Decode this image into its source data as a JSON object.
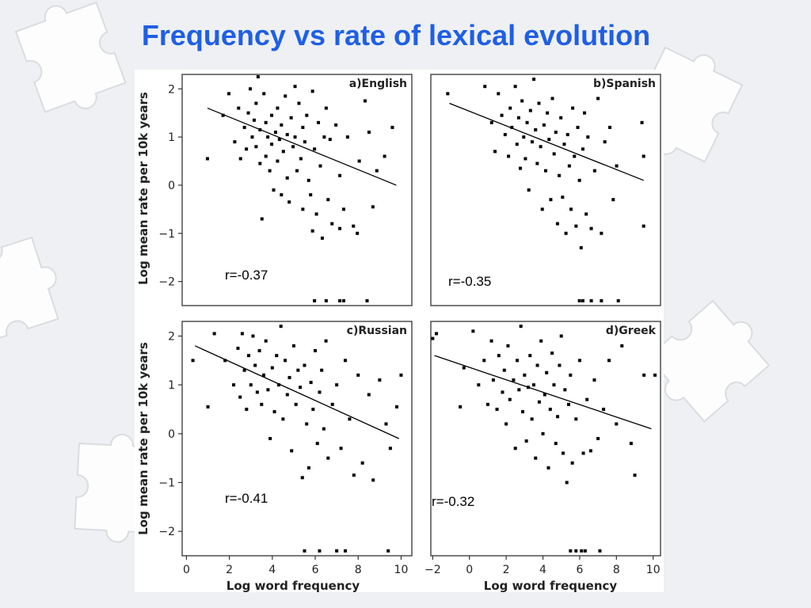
{
  "slide": {
    "title": "Frequency vs rate of lexical evolution"
  },
  "chart_data": {
    "type": "scatter",
    "grid": false,
    "shared_xlabel": "Log word frequency",
    "shared_ylabel": "Log mean rate per 10k years",
    "panels": [
      {
        "title": "a)English",
        "correlation_label": "r=-0.37",
        "xlim": [
          -0.8,
          11
        ],
        "ylim": [
          -2.5,
          2.3
        ],
        "xticks": [],
        "yticks": [
          2,
          1,
          0,
          -1,
          -2
        ],
        "ytick_labels": [
          "2",
          "1",
          "0",
          "−1",
          "−2"
        ],
        "trend_line": [
          [
            0.5,
            1.6
          ],
          [
            10.2,
            0.0
          ]
        ],
        "points": [
          [
            0.5,
            0.55
          ],
          [
            1.3,
            1.45
          ],
          [
            1.6,
            1.9
          ],
          [
            1.9,
            0.9
          ],
          [
            2.1,
            1.6
          ],
          [
            2.2,
            0.55
          ],
          [
            2.4,
            1.2
          ],
          [
            2.5,
            0.75
          ],
          [
            2.6,
            1.5
          ],
          [
            2.7,
            2.0
          ],
          [
            2.8,
            1.0
          ],
          [
            2.9,
            1.35
          ],
          [
            3.0,
            1.7
          ],
          [
            3.0,
            0.8
          ],
          [
            3.1,
            2.25
          ],
          [
            3.2,
            1.15
          ],
          [
            3.2,
            0.45
          ],
          [
            3.3,
            -0.7
          ],
          [
            3.4,
            1.9
          ],
          [
            3.5,
            1.3
          ],
          [
            3.5,
            0.6
          ],
          [
            3.6,
            1.0
          ],
          [
            3.7,
            0.3
          ],
          [
            3.8,
            1.45
          ],
          [
            3.8,
            0.85
          ],
          [
            3.9,
            -0.1
          ],
          [
            4.0,
            1.1
          ],
          [
            4.1,
            1.6
          ],
          [
            4.1,
            0.5
          ],
          [
            4.2,
            0.95
          ],
          [
            4.3,
            1.25
          ],
          [
            4.3,
            -0.2
          ],
          [
            4.4,
            0.7
          ],
          [
            4.5,
            1.85
          ],
          [
            4.6,
            1.05
          ],
          [
            4.6,
            0.15
          ],
          [
            4.7,
            -0.35
          ],
          [
            4.8,
            1.4
          ],
          [
            4.9,
            0.8
          ],
          [
            5.0,
            2.05
          ],
          [
            5.0,
            1.0
          ],
          [
            5.1,
            0.3
          ],
          [
            5.2,
            1.7
          ],
          [
            5.3,
            0.55
          ],
          [
            5.4,
            1.2
          ],
          [
            5.4,
            -0.5
          ],
          [
            5.5,
            0.9
          ],
          [
            5.6,
            1.45
          ],
          [
            5.7,
            0.1
          ],
          [
            5.8,
            -0.2
          ],
          [
            5.9,
            1.95
          ],
          [
            6.0,
            0.75
          ],
          [
            6.1,
            -0.6
          ],
          [
            6.2,
            1.3
          ],
          [
            6.3,
            0.4
          ],
          [
            6.4,
            -1.1
          ],
          [
            6.5,
            1.0
          ],
          [
            6.6,
            1.6
          ],
          [
            6.7,
            -0.3
          ],
          [
            6.8,
            0.95
          ],
          [
            6.9,
            -0.8
          ],
          [
            7.1,
            1.25
          ],
          [
            7.3,
            0.2
          ],
          [
            7.5,
            -0.5
          ],
          [
            7.7,
            1.0
          ],
          [
            8.0,
            -0.85
          ],
          [
            8.3,
            0.5
          ],
          [
            8.6,
            1.75
          ],
          [
            8.8,
            1.1
          ],
          [
            9.0,
            -0.45
          ],
          [
            9.2,
            0.3
          ],
          [
            9.6,
            0.6
          ],
          [
            10.0,
            1.2
          ],
          [
            8.2,
            -1.0
          ],
          [
            5.9,
            -0.95
          ],
          [
            7.3,
            -0.9
          ],
          [
            6.0,
            -2.4
          ],
          [
            6.6,
            -2.4
          ],
          [
            7.3,
            -2.4
          ],
          [
            7.5,
            -2.4
          ],
          [
            8.7,
            -2.4
          ]
        ]
      },
      {
        "title": "b)Spanish",
        "correlation_label": "r=-0.35",
        "xlim": [
          -2.8,
          10.8
        ],
        "ylim": [
          -2.5,
          2.3
        ],
        "xticks": [],
        "yticks": [],
        "trend_line": [
          [
            -1.7,
            1.7
          ],
          [
            9.8,
            0.1
          ]
        ],
        "points": [
          [
            -1.8,
            1.9
          ],
          [
            0.4,
            2.05
          ],
          [
            0.8,
            1.3
          ],
          [
            1.0,
            0.7
          ],
          [
            1.2,
            1.9
          ],
          [
            1.4,
            1.45
          ],
          [
            1.6,
            1.05
          ],
          [
            1.8,
            0.6
          ],
          [
            1.9,
            1.6
          ],
          [
            2.0,
            1.2
          ],
          [
            2.2,
            2.05
          ],
          [
            2.3,
            0.85
          ],
          [
            2.4,
            1.4
          ],
          [
            2.5,
            0.35
          ],
          [
            2.6,
            1.75
          ],
          [
            2.7,
            1.0
          ],
          [
            2.8,
            0.55
          ],
          [
            2.9,
            1.3
          ],
          [
            3.0,
            -0.1
          ],
          [
            3.1,
            1.55
          ],
          [
            3.2,
            0.9
          ],
          [
            3.3,
            2.2
          ],
          [
            3.4,
            1.15
          ],
          [
            3.5,
            0.45
          ],
          [
            3.6,
            1.7
          ],
          [
            3.7,
            0.8
          ],
          [
            3.8,
            -0.5
          ],
          [
            3.9,
            1.25
          ],
          [
            4.0,
            0.3
          ],
          [
            4.1,
            1.5
          ],
          [
            4.2,
            0.95
          ],
          [
            4.3,
            -0.3
          ],
          [
            4.4,
            1.8
          ],
          [
            4.5,
            0.65
          ],
          [
            4.6,
            1.1
          ],
          [
            4.7,
            -0.8
          ],
          [
            4.8,
            0.2
          ],
          [
            4.9,
            1.4
          ],
          [
            5.0,
            -0.25
          ],
          [
            5.1,
            0.85
          ],
          [
            5.2,
            -1.0
          ],
          [
            5.3,
            1.05
          ],
          [
            5.4,
            0.4
          ],
          [
            5.5,
            -0.5
          ],
          [
            5.6,
            1.6
          ],
          [
            5.7,
            0.6
          ],
          [
            5.8,
            -0.85
          ],
          [
            5.9,
            1.2
          ],
          [
            6.0,
            0.1
          ],
          [
            6.1,
            -1.3
          ],
          [
            6.2,
            0.75
          ],
          [
            6.3,
            1.5
          ],
          [
            6.4,
            -0.6
          ],
          [
            6.5,
            1.0
          ],
          [
            6.7,
            -0.9
          ],
          [
            6.9,
            0.3
          ],
          [
            7.1,
            1.8
          ],
          [
            7.3,
            -1.0
          ],
          [
            7.5,
            0.9
          ],
          [
            7.8,
            1.2
          ],
          [
            8.0,
            -0.3
          ],
          [
            8.2,
            0.4
          ],
          [
            9.7,
            1.3
          ],
          [
            9.8,
            0.6
          ],
          [
            9.8,
            -0.85
          ],
          [
            6.0,
            -2.4
          ],
          [
            6.2,
            -2.4
          ],
          [
            6.7,
            -2.4
          ],
          [
            7.3,
            -2.4
          ],
          [
            8.3,
            -2.4
          ]
        ]
      },
      {
        "title": "c)Russian",
        "correlation_label": "r=-0.41",
        "xlim": [
          -0.2,
          10.5
        ],
        "ylim": [
          -2.5,
          2.3
        ],
        "xticks": [
          0,
          2,
          4,
          6,
          8,
          10
        ],
        "yticks": [
          2,
          1,
          0,
          -1,
          -2
        ],
        "ytick_labels": [
          "2",
          "1",
          "0",
          "−1",
          "−2"
        ],
        "trend_line": [
          [
            0.4,
            1.8
          ],
          [
            9.9,
            -0.1
          ]
        ],
        "points": [
          [
            0.3,
            1.5
          ],
          [
            1.0,
            0.55
          ],
          [
            1.3,
            2.05
          ],
          [
            1.8,
            1.5
          ],
          [
            2.2,
            1.0
          ],
          [
            2.4,
            1.75
          ],
          [
            2.5,
            0.75
          ],
          [
            2.6,
            2.05
          ],
          [
            2.7,
            1.3
          ],
          [
            2.8,
            0.5
          ],
          [
            2.9,
            1.6
          ],
          [
            3.0,
            1.0
          ],
          [
            3.1,
            2.0
          ],
          [
            3.2,
            1.4
          ],
          [
            3.3,
            0.85
          ],
          [
            3.4,
            1.7
          ],
          [
            3.5,
            0.6
          ],
          [
            3.6,
            1.2
          ],
          [
            3.7,
            1.9
          ],
          [
            3.8,
            0.9
          ],
          [
            3.9,
            -0.1
          ],
          [
            4.0,
            1.35
          ],
          [
            4.1,
            0.45
          ],
          [
            4.2,
            1.6
          ],
          [
            4.3,
            1.0
          ],
          [
            4.4,
            2.2
          ],
          [
            4.5,
            0.3
          ],
          [
            4.6,
            1.5
          ],
          [
            4.7,
            0.8
          ],
          [
            4.8,
            1.15
          ],
          [
            4.9,
            -0.35
          ],
          [
            5.0,
            1.8
          ],
          [
            5.1,
            0.6
          ],
          [
            5.2,
            1.3
          ],
          [
            5.3,
            0.95
          ],
          [
            5.4,
            -0.9
          ],
          [
            5.5,
            1.4
          ],
          [
            5.6,
            0.2
          ],
          [
            5.7,
            -0.7
          ],
          [
            5.8,
            1.05
          ],
          [
            5.9,
            0.5
          ],
          [
            6.0,
            1.7
          ],
          [
            6.1,
            -0.2
          ],
          [
            6.2,
            0.85
          ],
          [
            6.3,
            1.3
          ],
          [
            6.4,
            0.1
          ],
          [
            6.5,
            1.9
          ],
          [
            6.6,
            -0.5
          ],
          [
            6.8,
            0.6
          ],
          [
            7.0,
            1.0
          ],
          [
            7.2,
            -0.3
          ],
          [
            7.4,
            1.5
          ],
          [
            7.6,
            0.3
          ],
          [
            7.8,
            -0.85
          ],
          [
            8.0,
            1.2
          ],
          [
            8.2,
            -0.6
          ],
          [
            8.5,
            0.8
          ],
          [
            8.7,
            -0.95
          ],
          [
            9.0,
            1.1
          ],
          [
            9.3,
            0.2
          ],
          [
            9.5,
            -0.3
          ],
          [
            9.8,
            0.55
          ],
          [
            10.0,
            1.2
          ],
          [
            5.5,
            -2.4
          ],
          [
            6.2,
            -2.4
          ],
          [
            7.0,
            -2.4
          ],
          [
            7.4,
            -2.4
          ],
          [
            9.4,
            -2.4
          ]
        ]
      },
      {
        "title": "d)Greek",
        "correlation_label": "r=-0.32",
        "xlim": [
          -2.1,
          10.4
        ],
        "ylim": [
          -2.5,
          2.3
        ],
        "xticks": [
          -2,
          0,
          2,
          4,
          6,
          8,
          10
        ],
        "yticks": [],
        "trend_line": [
          [
            -1.9,
            1.6
          ],
          [
            9.9,
            0.1
          ]
        ],
        "points": [
          [
            -2.0,
            1.95
          ],
          [
            -1.8,
            2.05
          ],
          [
            -0.5,
            0.55
          ],
          [
            -0.3,
            1.35
          ],
          [
            0.2,
            2.1
          ],
          [
            0.5,
            1.0
          ],
          [
            0.8,
            1.5
          ],
          [
            1.0,
            0.6
          ],
          [
            1.2,
            1.9
          ],
          [
            1.3,
            1.1
          ],
          [
            1.5,
            0.5
          ],
          [
            1.6,
            1.6
          ],
          [
            1.8,
            0.85
          ],
          [
            1.9,
            1.3
          ],
          [
            2.0,
            0.2
          ],
          [
            2.1,
            1.8
          ],
          [
            2.2,
            0.7
          ],
          [
            2.4,
            1.1
          ],
          [
            2.5,
            -0.3
          ],
          [
            2.6,
            1.5
          ],
          [
            2.7,
            0.9
          ],
          [
            2.8,
            2.2
          ],
          [
            2.9,
            0.45
          ],
          [
            3.0,
            1.2
          ],
          [
            3.1,
            -0.15
          ],
          [
            3.2,
            0.95
          ],
          [
            3.3,
            1.6
          ],
          [
            3.4,
            0.3
          ],
          [
            3.5,
            1.0
          ],
          [
            3.6,
            -0.5
          ],
          [
            3.7,
            1.4
          ],
          [
            3.8,
            0.65
          ],
          [
            3.9,
            1.9
          ],
          [
            4.0,
            0.0
          ],
          [
            4.1,
            0.8
          ],
          [
            4.2,
            1.25
          ],
          [
            4.3,
            -0.7
          ],
          [
            4.4,
            0.5
          ],
          [
            4.5,
            1.65
          ],
          [
            4.6,
            1.0
          ],
          [
            4.7,
            -0.2
          ],
          [
            4.8,
            0.35
          ],
          [
            4.9,
            1.4
          ],
          [
            5.0,
            2.0
          ],
          [
            5.1,
            -0.4
          ],
          [
            5.2,
            0.9
          ],
          [
            5.3,
            -1.0
          ],
          [
            5.4,
            0.6
          ],
          [
            5.5,
            1.2
          ],
          [
            5.6,
            -0.6
          ],
          [
            5.8,
            0.3
          ],
          [
            6.0,
            1.5
          ],
          [
            6.2,
            -0.4
          ],
          [
            6.4,
            0.7
          ],
          [
            6.6,
            -0.35
          ],
          [
            6.8,
            1.1
          ],
          [
            7.0,
            -0.1
          ],
          [
            7.3,
            0.5
          ],
          [
            7.6,
            1.5
          ],
          [
            8.0,
            0.2
          ],
          [
            8.3,
            1.8
          ],
          [
            8.8,
            -0.2
          ],
          [
            9.0,
            -0.85
          ],
          [
            9.5,
            1.2
          ],
          [
            10.1,
            1.2
          ],
          [
            5.5,
            -2.4
          ],
          [
            5.8,
            -2.4
          ],
          [
            6.1,
            -2.4
          ],
          [
            6.3,
            -2.4
          ],
          [
            7.1,
            -2.4
          ]
        ]
      }
    ]
  }
}
